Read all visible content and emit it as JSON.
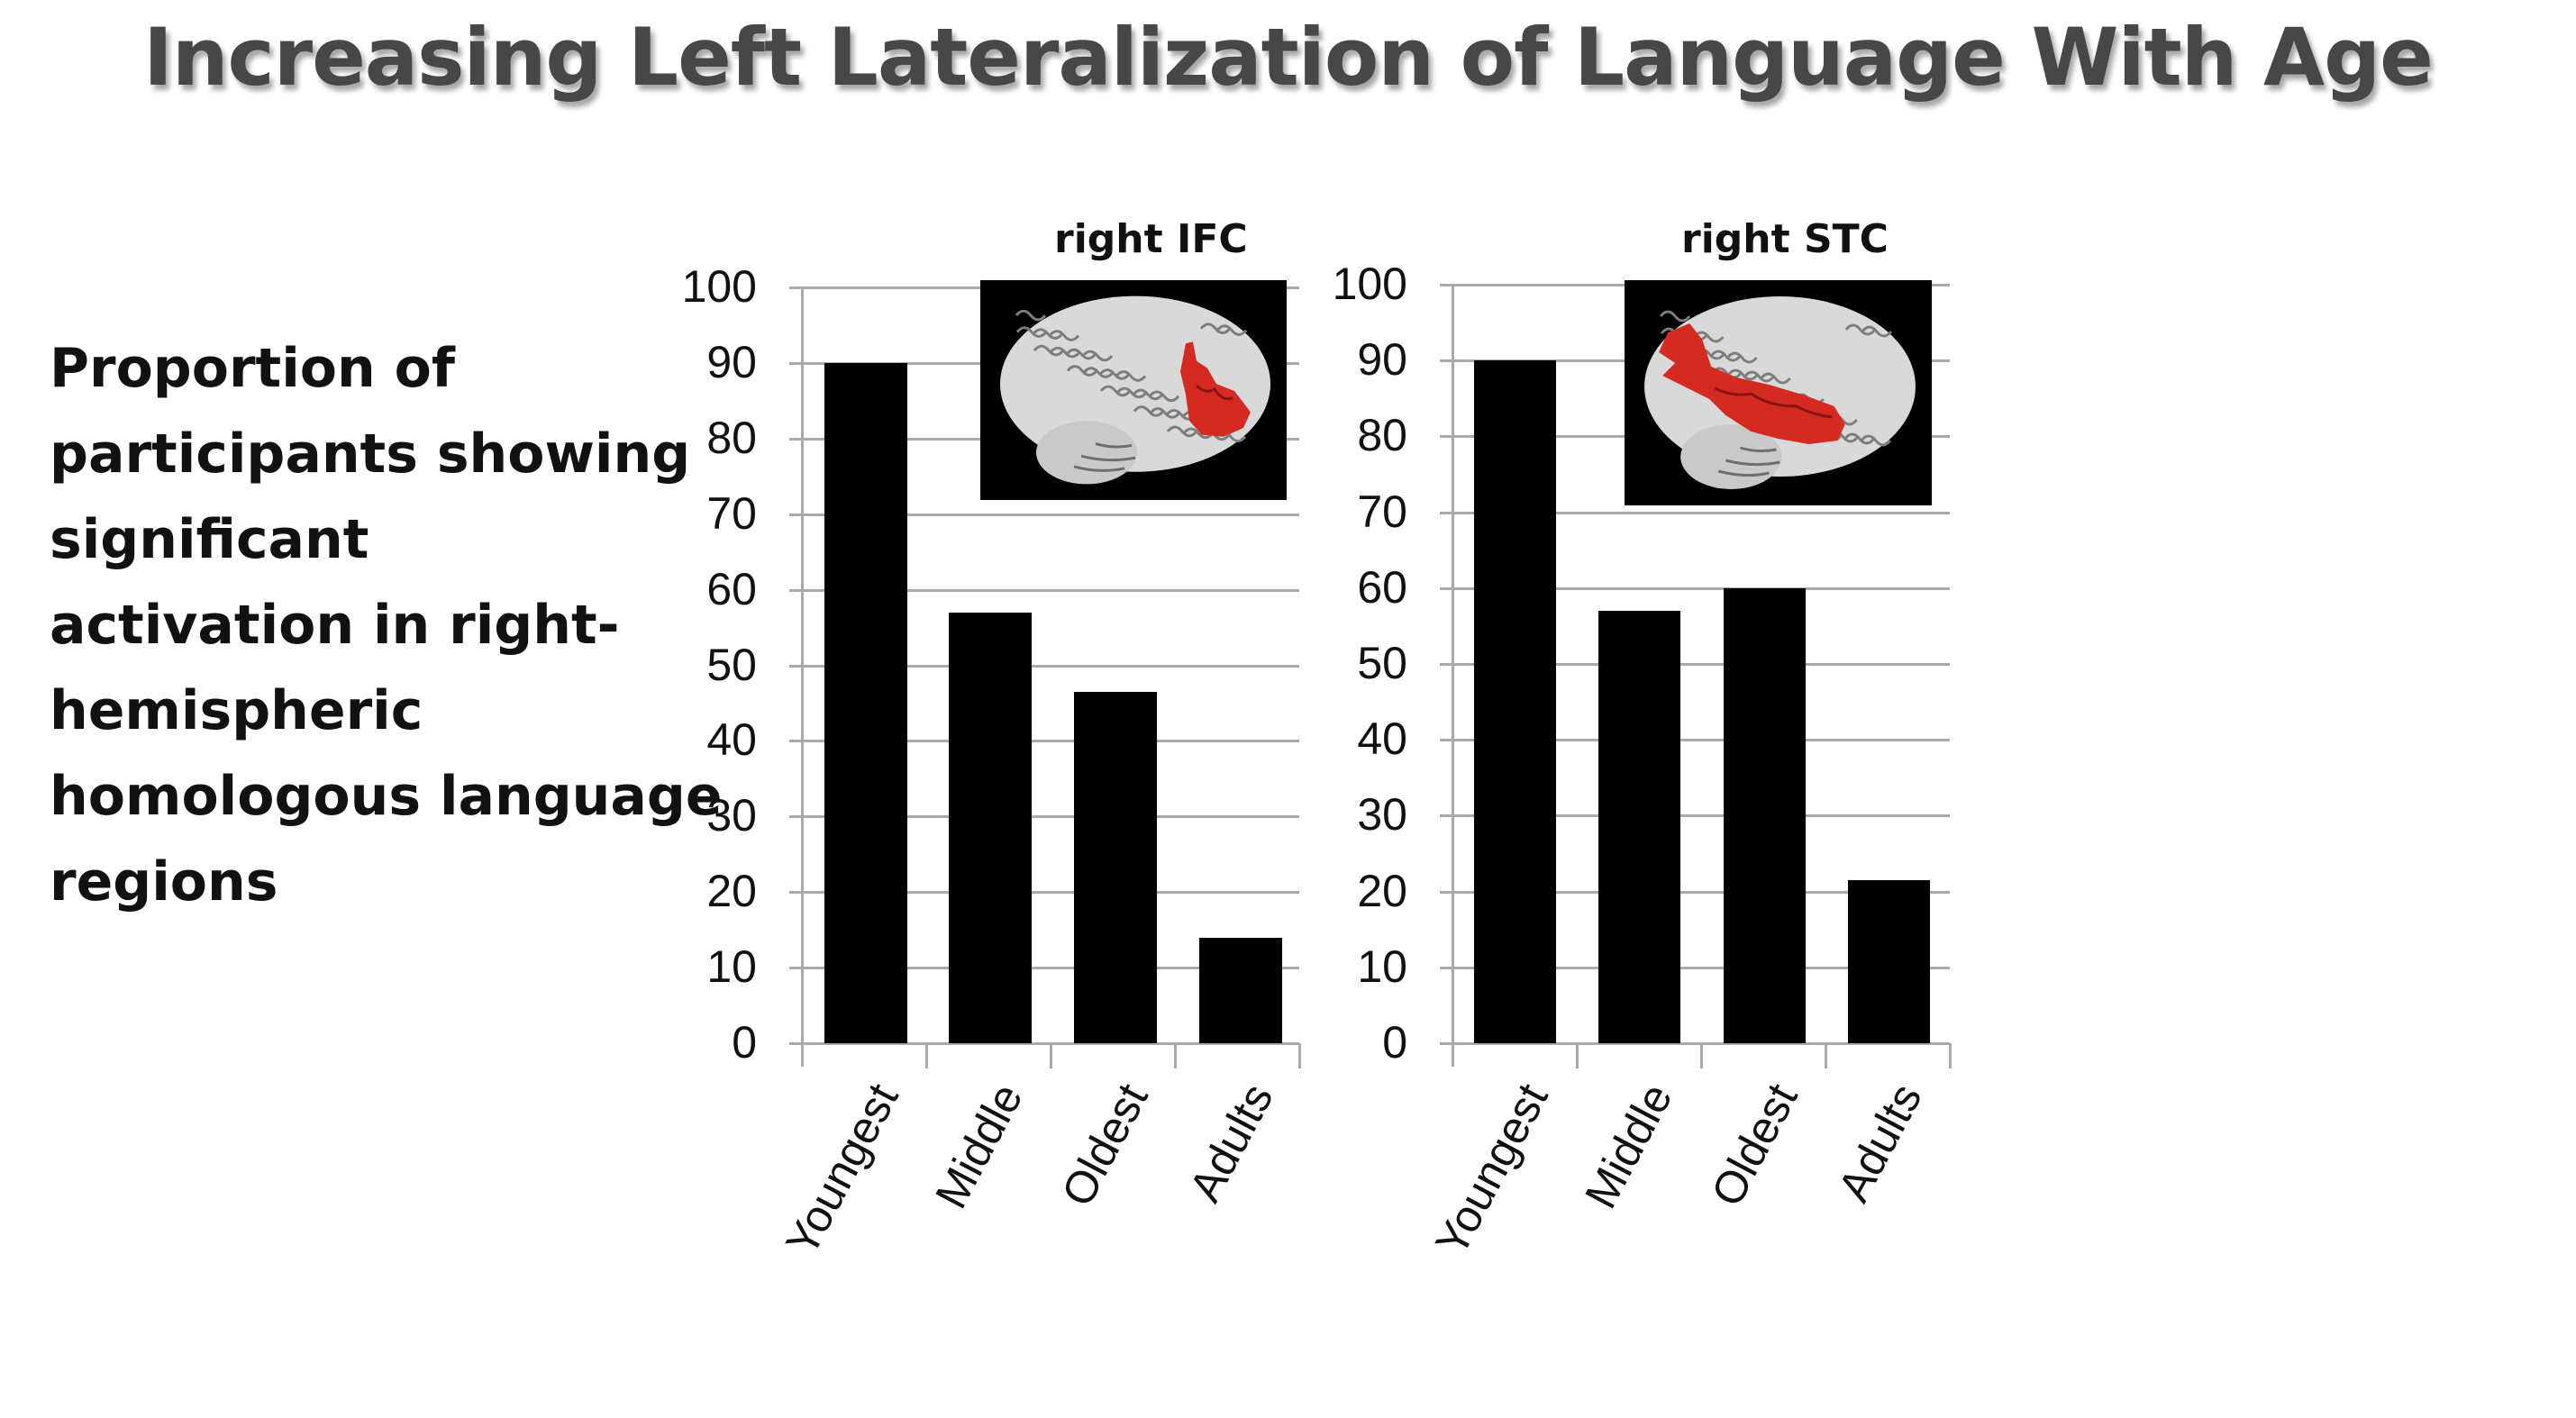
{
  "slide": {
    "title": "Increasing Left Lateralization of Language With Age",
    "description_lines": [
      "Proportion of",
      "participants showing",
      "significant",
      "activation in right-",
      "hemispheric",
      "homologous language",
      "regions"
    ]
  },
  "colors": {
    "title": "#474747",
    "bars": "#000000",
    "gridlines": "#a9a9a9",
    "activation": "#d42a22",
    "brain_surface": "#d9d9d9",
    "inset_background": "#000000"
  },
  "chart_data": [
    {
      "type": "bar",
      "title": "right IFC",
      "categories": [
        "Youngest",
        "Middle",
        "Oldest",
        "Adults"
      ],
      "values": [
        90,
        57,
        46.5,
        14
      ],
      "xlabel": "",
      "ylabel": "Proportion of participants showing significant activation in right-hemispheric homologous language regions",
      "ylim": [
        0,
        100
      ],
      "yticks": [
        0,
        10,
        20,
        30,
        40,
        50,
        60,
        70,
        80,
        90,
        100
      ],
      "grid": true,
      "inset": "brain-render-right-IFC-activation"
    },
    {
      "type": "bar",
      "title": "right STC",
      "categories": [
        "Youngest",
        "Middle",
        "Oldest",
        "Adults"
      ],
      "values": [
        90,
        57,
        60,
        21.5
      ],
      "xlabel": "",
      "ylabel": "",
      "ylim": [
        0,
        100
      ],
      "yticks": [
        0,
        10,
        20,
        30,
        40,
        50,
        60,
        70,
        80,
        90,
        100
      ],
      "grid": true,
      "inset": "brain-render-right-STC-activation"
    }
  ]
}
